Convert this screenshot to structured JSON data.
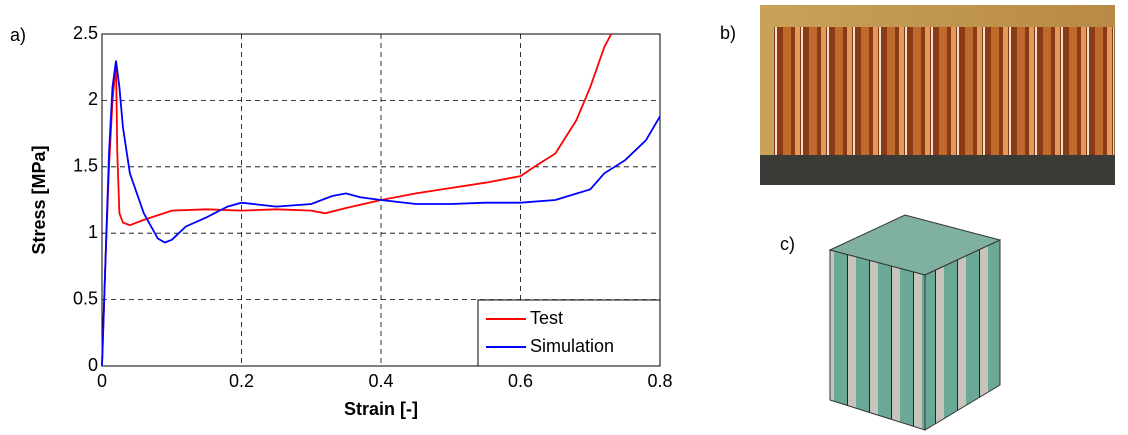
{
  "panel_labels": [
    "a)",
    "b)",
    "c)"
  ],
  "chart_data": {
    "type": "line",
    "xlabel": "Strain [-]",
    "ylabel": "Stress [MPa]",
    "xlim": [
      0,
      0.8
    ],
    "ylim": [
      0,
      2.5
    ],
    "xticks": [
      0,
      0.2,
      0.4,
      0.6,
      0.8
    ],
    "yticks": [
      0,
      0.5,
      1,
      1.5,
      2,
      2.5
    ],
    "grid": true,
    "legend": "lower right",
    "series": [
      {
        "name": "Test",
        "color": "#ff0000",
        "x": [
          0,
          0.005,
          0.01,
          0.015,
          0.02,
          0.022,
          0.025,
          0.03,
          0.04,
          0.06,
          0.1,
          0.15,
          0.2,
          0.25,
          0.3,
          0.32,
          0.35,
          0.4,
          0.45,
          0.5,
          0.55,
          0.6,
          0.62,
          0.65,
          0.68,
          0.7,
          0.72,
          0.73
        ],
        "values": [
          0,
          0.8,
          1.5,
          2.0,
          2.28,
          1.6,
          1.15,
          1.08,
          1.06,
          1.1,
          1.17,
          1.18,
          1.17,
          1.18,
          1.17,
          1.15,
          1.19,
          1.25,
          1.3,
          1.34,
          1.38,
          1.43,
          1.5,
          1.6,
          1.85,
          2.1,
          2.4,
          2.5
        ]
      },
      {
        "name": "Simulation",
        "color": "#0000ff",
        "x": [
          0,
          0.005,
          0.01,
          0.015,
          0.02,
          0.025,
          0.03,
          0.04,
          0.06,
          0.08,
          0.09,
          0.1,
          0.12,
          0.15,
          0.18,
          0.2,
          0.25,
          0.3,
          0.33,
          0.35,
          0.37,
          0.4,
          0.45,
          0.5,
          0.55,
          0.6,
          0.65,
          0.7,
          0.72,
          0.75,
          0.78,
          0.8
        ],
        "values": [
          0,
          0.8,
          1.6,
          2.1,
          2.3,
          2.1,
          1.8,
          1.45,
          1.15,
          0.96,
          0.93,
          0.95,
          1.05,
          1.12,
          1.2,
          1.23,
          1.2,
          1.22,
          1.28,
          1.3,
          1.27,
          1.25,
          1.22,
          1.22,
          1.23,
          1.23,
          1.25,
          1.33,
          1.45,
          1.55,
          1.7,
          1.88
        ]
      }
    ]
  }
}
